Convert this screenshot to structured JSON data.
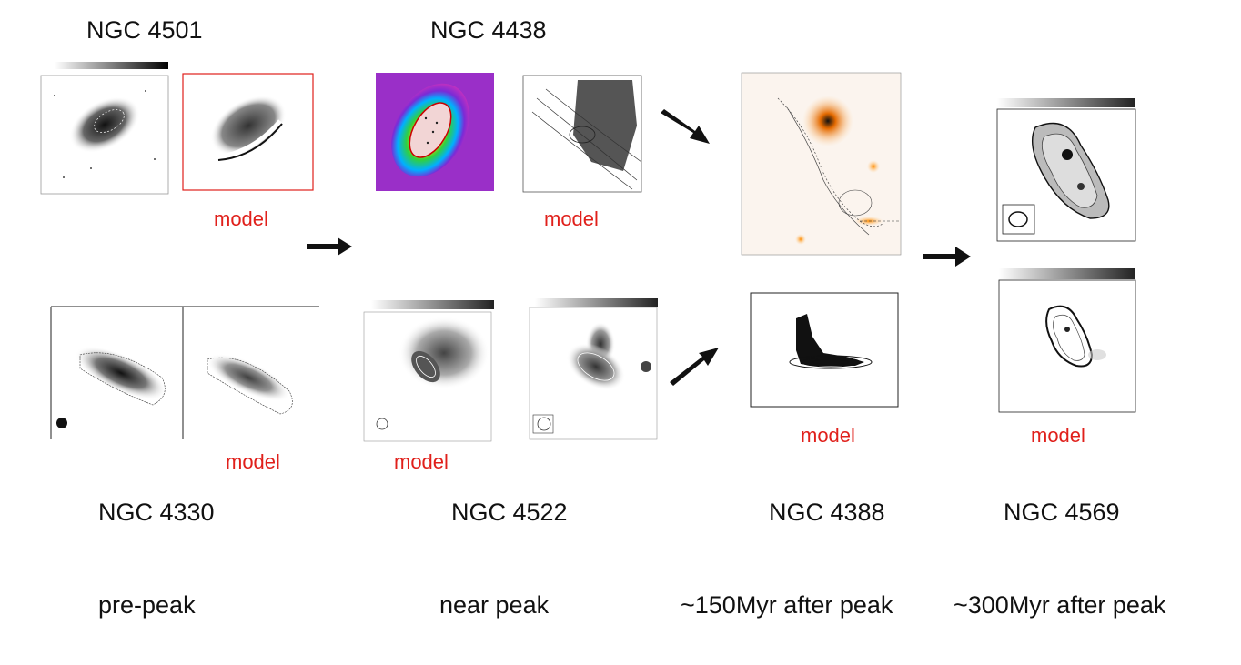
{
  "titles": {
    "ngc4501": "NGC 4501",
    "ngc4438": "NGC 4438",
    "ngc4330": "NGC 4330",
    "ngc4522": "NGC 4522",
    "ngc4388": "NGC 4388",
    "ngc4569": "NGC 4569"
  },
  "stages": {
    "pre_peak": "pre-peak",
    "near_peak": "near peak",
    "after_150": "~150Myr after peak",
    "after_300": "~300Myr after peak"
  },
  "model_label": "model",
  "colors": {
    "model_text": "#e0201b",
    "arrow": "#111111"
  }
}
